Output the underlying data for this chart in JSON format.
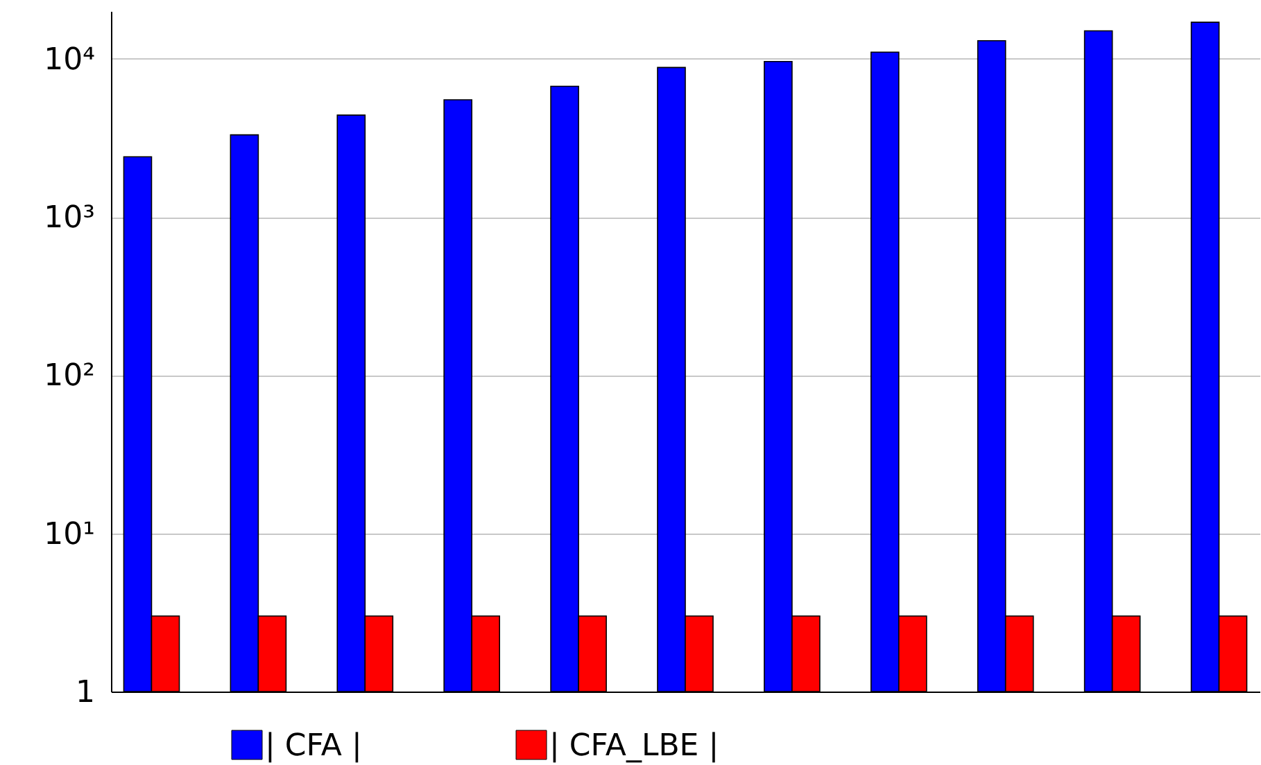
{
  "chart_data": {
    "type": "bar",
    "categories": [
      null,
      null,
      null,
      null,
      null,
      null,
      null,
      null,
      null,
      null,
      null
    ],
    "series": [
      {
        "name": "| CFA |",
        "color": "#0000ff",
        "values": [
          2400,
          3300,
          4400,
          5500,
          6700,
          8800,
          9600,
          11000,
          13000,
          15000,
          17000
        ]
      },
      {
        "name": "| CFA_LBE |",
        "color": "#ff0000",
        "values": [
          3,
          3,
          3,
          3,
          3,
          3,
          3,
          3,
          3,
          3,
          3
        ]
      }
    ],
    "log": "y",
    "ylim": [
      1,
      20000
    ],
    "yticks": [
      1,
      {
        "value": 10,
        "label": "10¹"
      },
      {
        "value": 100,
        "label": "10²"
      },
      {
        "value": 1000,
        "label": "10³"
      },
      {
        "value": 10000,
        "label": "10⁴"
      }
    ],
    "grid": "y",
    "legend": "bottom",
    "tick_labels": "y"
  }
}
